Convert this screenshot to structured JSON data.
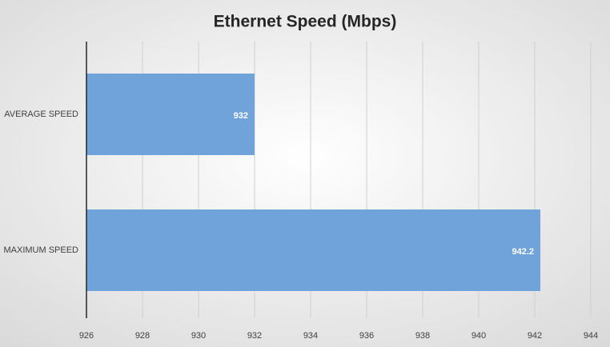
{
  "chart_data": {
    "type": "bar",
    "title": "Ethernet Speed (Mbps)",
    "categories": [
      "AVERAGE SPEED",
      "MAXIMUM SPEED"
    ],
    "values": [
      932,
      942.2
    ],
    "color": "#6fa3d9",
    "xlim": [
      926,
      944
    ],
    "xticks": [
      926,
      928,
      930,
      932,
      934,
      936,
      938,
      940,
      942,
      944
    ],
    "grid": true
  }
}
